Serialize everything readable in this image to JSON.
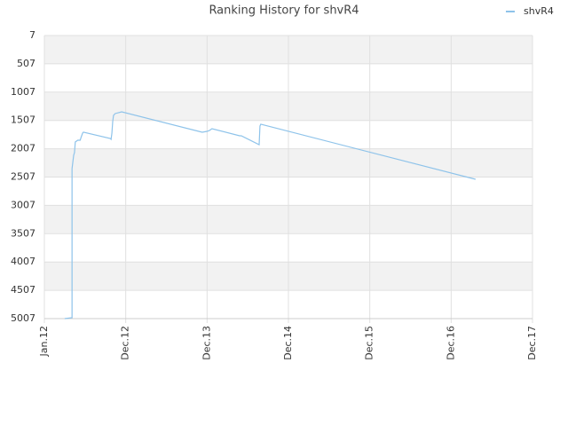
{
  "chart_data": {
    "type": "line",
    "title": "Ranking History for shvR4",
    "x": [
      0.25,
      0.34,
      0.34,
      0.36,
      0.37,
      0.38,
      0.41,
      0.44,
      0.45,
      0.47,
      0.48,
      0.81,
      0.82,
      0.83,
      0.84,
      0.85,
      0.87,
      0.95,
      1.94,
      2.0,
      2.03,
      2.06,
      2.4,
      2.42,
      2.64,
      2.65,
      2.66,
      5.3
    ],
    "series": [
      {
        "name": "shvR4",
        "color": "#8ec3ea",
        "values": [
          5007,
          4990,
          2358,
          2123,
          2076,
          1888,
          1857,
          1857,
          1810,
          1731,
          1715,
          1825,
          1841,
          1731,
          1527,
          1417,
          1386,
          1355,
          1715,
          1700,
          1684,
          1653,
          1778,
          1778,
          1935,
          1606,
          1574,
          2546
        ]
      }
    ],
    "xlim": [
      0,
      6
    ],
    "xticks": [
      {
        "value": 0,
        "label": "Jan.12"
      },
      {
        "value": 1,
        "label": "Dec.12"
      },
      {
        "value": 2,
        "label": "Dec.13"
      },
      {
        "value": 3,
        "label": "Dec.14"
      },
      {
        "value": 4,
        "label": "Dec.15"
      },
      {
        "value": 5,
        "label": "Dec.16"
      },
      {
        "value": 6,
        "label": "Dec.17"
      }
    ],
    "ylim": [
      5007,
      7
    ],
    "yticks": [
      7,
      507,
      1007,
      1507,
      2007,
      2507,
      3007,
      3507,
      4007,
      4507,
      5007
    ],
    "grid": true,
    "legend": "top-right"
  }
}
